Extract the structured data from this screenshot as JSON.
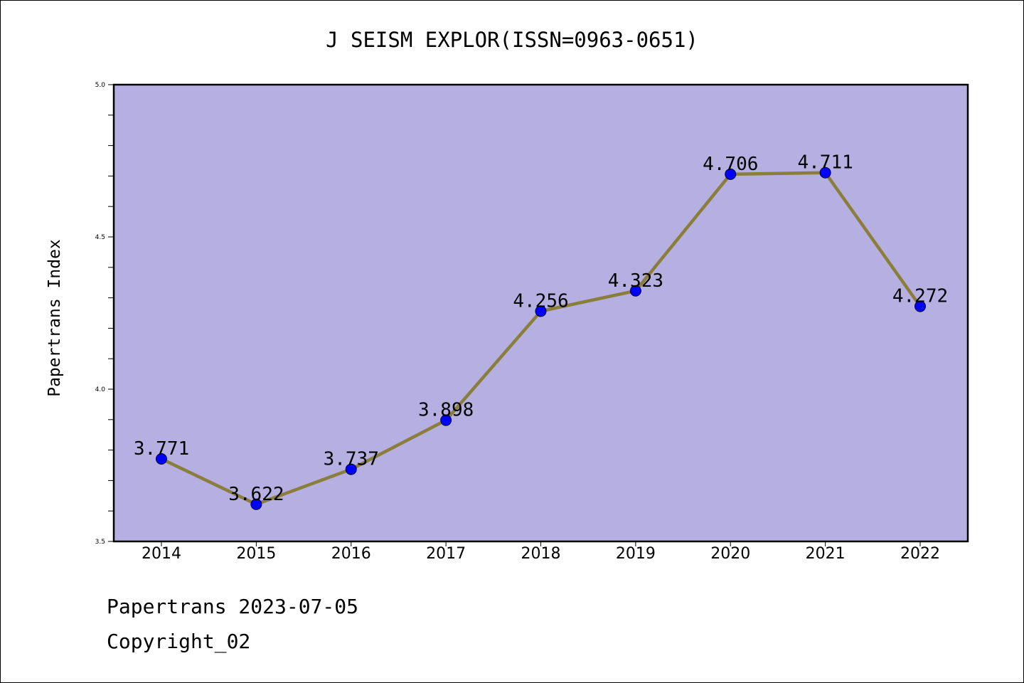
{
  "chart_data": {
    "type": "line",
    "title": "J SEISM EXPLOR(ISSN=0963-0651)",
    "xlabel": "",
    "ylabel": "Papertrans Index",
    "categories": [
      "2014",
      "2015",
      "2016",
      "2017",
      "2018",
      "2019",
      "2020",
      "2021",
      "2022"
    ],
    "series": [
      {
        "values": [
          3.771,
          3.622,
          3.737,
          3.898,
          4.256,
          4.323,
          4.706,
          4.711,
          4.272
        ],
        "data_labels": [
          "3.771",
          "3.622",
          "3.737",
          "3.898",
          "4.256",
          "4.323",
          "4.706",
          "4.711",
          "4.272"
        ],
        "line_color": "#8b7d3a",
        "marker_color": "#0000ff"
      }
    ],
    "ylim": [
      3.5,
      5.0
    ],
    "yticks": [
      3.5,
      4.0,
      4.5,
      5.0
    ],
    "ytick_labels": [
      "3.5",
      "4.0",
      "4.5",
      "5.0"
    ],
    "plot_background": "#b5afe2",
    "grid": false,
    "legend": "none"
  },
  "footer": {
    "source": "Papertrans 2023-07-05",
    "copyright": "Copyright_02"
  }
}
